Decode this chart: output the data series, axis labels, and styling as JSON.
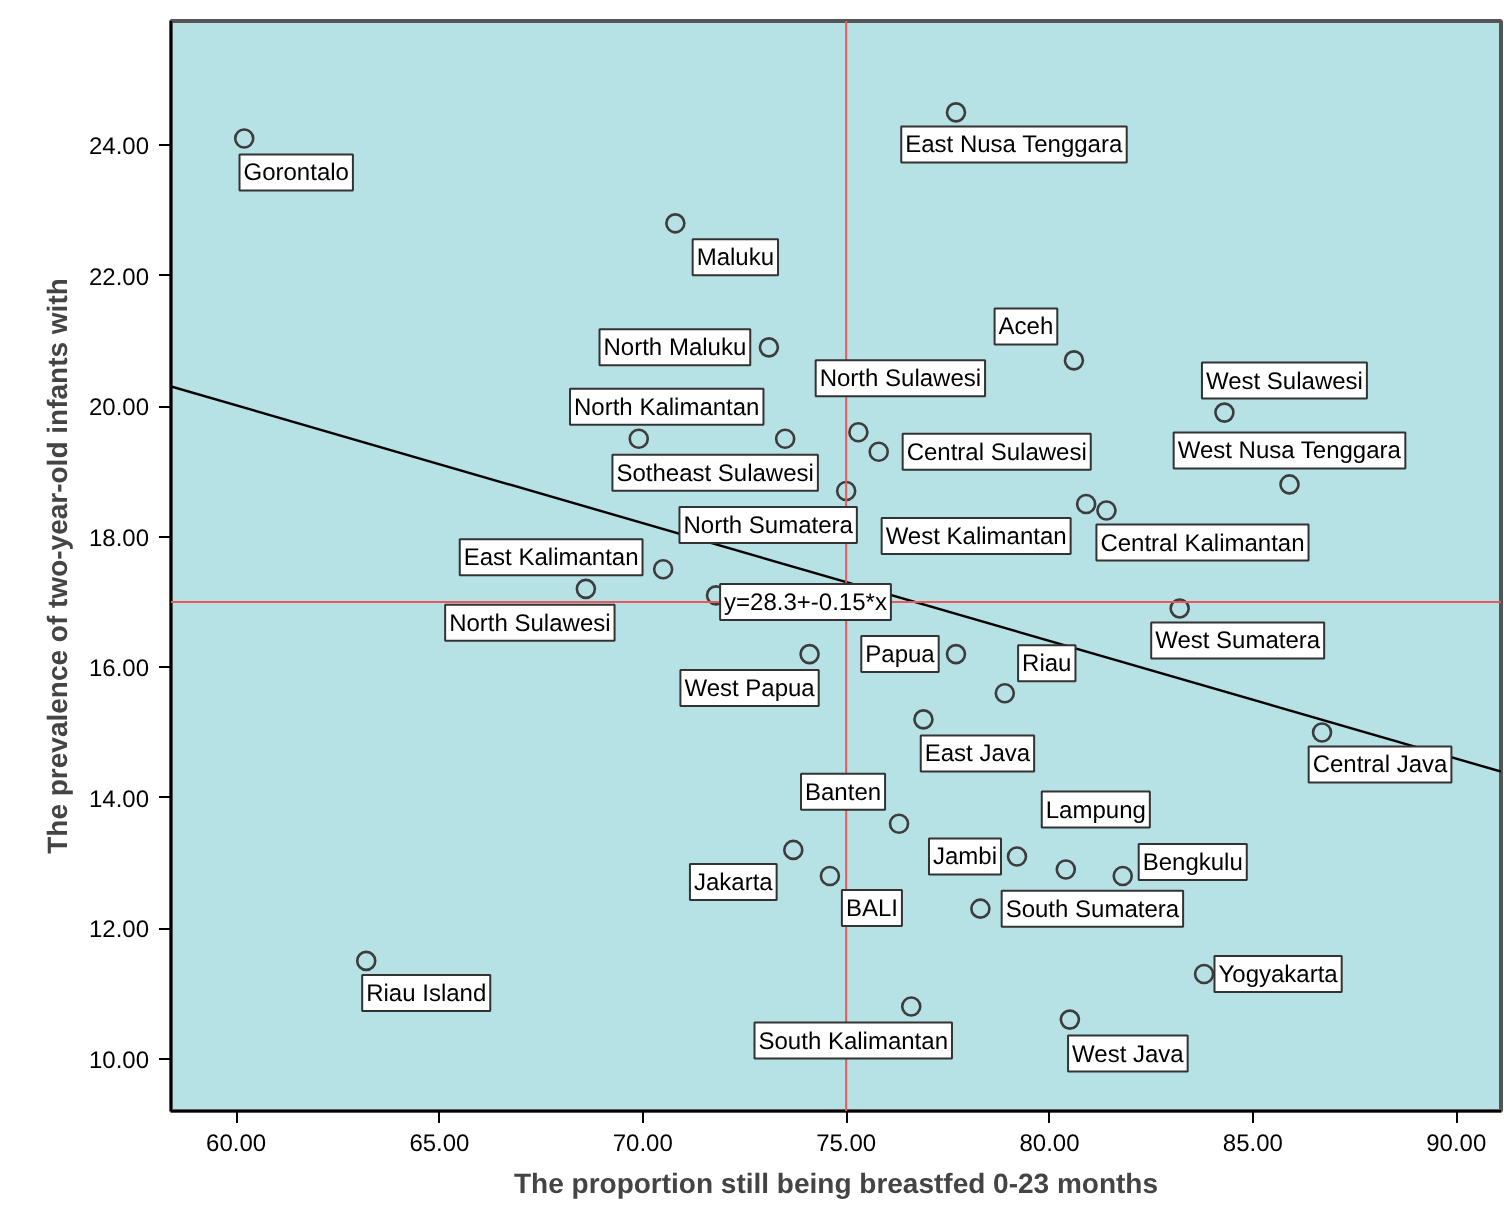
{
  "chart_data": {
    "type": "scatter",
    "xlabel": "The proportion still being breastfed 0-23 months",
    "ylabel": "The prevalence of two-year-old infants with",
    "xlim": [
      58.4,
      91.1
    ],
    "ylim": [
      9.2,
      25.9
    ],
    "xticks": [
      {
        "value": 60,
        "label": "60.00"
      },
      {
        "value": 65,
        "label": "65.00"
      },
      {
        "value": 70,
        "label": "70.00"
      },
      {
        "value": 75,
        "label": "75.00"
      },
      {
        "value": 80,
        "label": "80.00"
      },
      {
        "value": 85,
        "label": "85.00"
      },
      {
        "value": 90,
        "label": "90.00"
      }
    ],
    "yticks": [
      {
        "value": 10,
        "label": "10.00"
      },
      {
        "value": 12,
        "label": "12.00"
      },
      {
        "value": 14,
        "label": "14.00"
      },
      {
        "value": 16,
        "label": "16.00"
      },
      {
        "value": 18,
        "label": "18.00"
      },
      {
        "value": 20,
        "label": "20.00"
      },
      {
        "value": 22,
        "label": "22.00"
      },
      {
        "value": 24,
        "label": "24.00"
      }
    ],
    "grid": false,
    "marker": "circle",
    "series": [
      {
        "color": "#3c3c3c",
        "x": [
          60.2,
          77.7,
          70.8,
          73.1,
          69.9,
          73.5,
          75.3,
          75.8,
          80.6,
          84.3,
          85.9,
          75.0,
          80.9,
          81.4,
          70.5,
          68.6,
          71.8,
          74.1,
          77.7,
          78.9,
          83.2,
          76.9,
          86.7,
          76.3,
          73.7,
          74.6,
          79.2,
          80.4,
          81.8,
          78.3,
          83.8,
          76.6,
          80.5,
          63.2
        ],
        "values": [
          24.1,
          24.5,
          22.8,
          20.9,
          19.5,
          19.5,
          19.6,
          19.3,
          20.7,
          19.9,
          18.8,
          18.7,
          18.5,
          18.4,
          17.5,
          17.2,
          17.1,
          16.2,
          16.2,
          15.6,
          16.9,
          15.2,
          15.0,
          13.6,
          13.2,
          12.8,
          13.1,
          12.9,
          12.8,
          12.3,
          11.3,
          10.8,
          10.6,
          11.5
        ]
      },
      {
        "type": "line",
        "marker": "none",
        "color": "#000000",
        "x": [
          58.4,
          91.1
        ],
        "values": [
          20.3,
          14.4
        ]
      }
    ],
    "ref_lines": [
      {
        "axis": "x",
        "value": 75,
        "color": "#e8575a"
      },
      {
        "axis": "y",
        "value": 17,
        "color": "#e8575a"
      }
    ],
    "annotations": [
      {
        "text": "Gorontalo",
        "x": 60.2,
        "y": 24.1
      },
      {
        "text": "East Nusa Tenggara",
        "x": 77.7,
        "y": 24.5
      },
      {
        "text": "Maluku",
        "x": 70.8,
        "y": 22.8
      },
      {
        "text": "North Maluku",
        "x": 73.1,
        "y": 20.9
      },
      {
        "text": "North Kalimantan",
        "x": 69.9,
        "y": 19.5
      },
      {
        "text": "Sotheast Sulawesi",
        "x": 73.5,
        "y": 19.5
      },
      {
        "text": "North Sulawesi",
        "x": 75.3,
        "y": 19.6
      },
      {
        "text": "Central Sulawesi",
        "x": 75.8,
        "y": 19.3
      },
      {
        "text": "Aceh",
        "x": 80.6,
        "y": 20.7
      },
      {
        "text": "West Sulawesi",
        "x": 84.3,
        "y": 19.9
      },
      {
        "text": "West Nusa Tenggara",
        "x": 85.9,
        "y": 18.8
      },
      {
        "text": "North Sumatera",
        "x": 75.0,
        "y": 18.7
      },
      {
        "text": "West Kalimantan",
        "x": 80.9,
        "y": 18.5
      },
      {
        "text": "Central Kalimantan",
        "x": 81.4,
        "y": 18.4
      },
      {
        "text": "East Kalimantan",
        "x": 70.5,
        "y": 17.5
      },
      {
        "text": "North Sulawesi",
        "x": 68.6,
        "y": 17.2
      },
      {
        "text": "West Papua",
        "x": 74.1,
        "y": 16.2
      },
      {
        "text": "Papua",
        "x": 77.7,
        "y": 16.2
      },
      {
        "text": "Riau",
        "x": 78.9,
        "y": 15.6
      },
      {
        "text": "West Sumatera",
        "x": 83.2,
        "y": 16.9
      },
      {
        "text": "East Java",
        "x": 76.9,
        "y": 15.2
      },
      {
        "text": "Central Java",
        "x": 86.7,
        "y": 15.0
      },
      {
        "text": "Banten",
        "x": 76.3,
        "y": 13.6
      },
      {
        "text": "Jakarta",
        "x": 73.7,
        "y": 13.2
      },
      {
        "text": "BALI",
        "x": 74.6,
        "y": 12.8
      },
      {
        "text": "Jambi",
        "x": 79.2,
        "y": 13.1
      },
      {
        "text": "Lampung",
        "x": 80.4,
        "y": 12.9
      },
      {
        "text": "Bengkulu",
        "x": 81.8,
        "y": 12.8
      },
      {
        "text": "South Sumatera",
        "x": 78.3,
        "y": 12.3
      },
      {
        "text": "Yogyakarta",
        "x": 83.8,
        "y": 11.3
      },
      {
        "text": "South Kalimantan",
        "x": 76.6,
        "y": 10.8
      },
      {
        "text": "West Java",
        "x": 80.5,
        "y": 10.6
      },
      {
        "text": "Riau Island",
        "x": 63.2,
        "y": 11.5
      },
      {
        "text": "y=28.3+-0.15*x",
        "x": 74.0,
        "y": 17.0
      }
    ]
  }
}
